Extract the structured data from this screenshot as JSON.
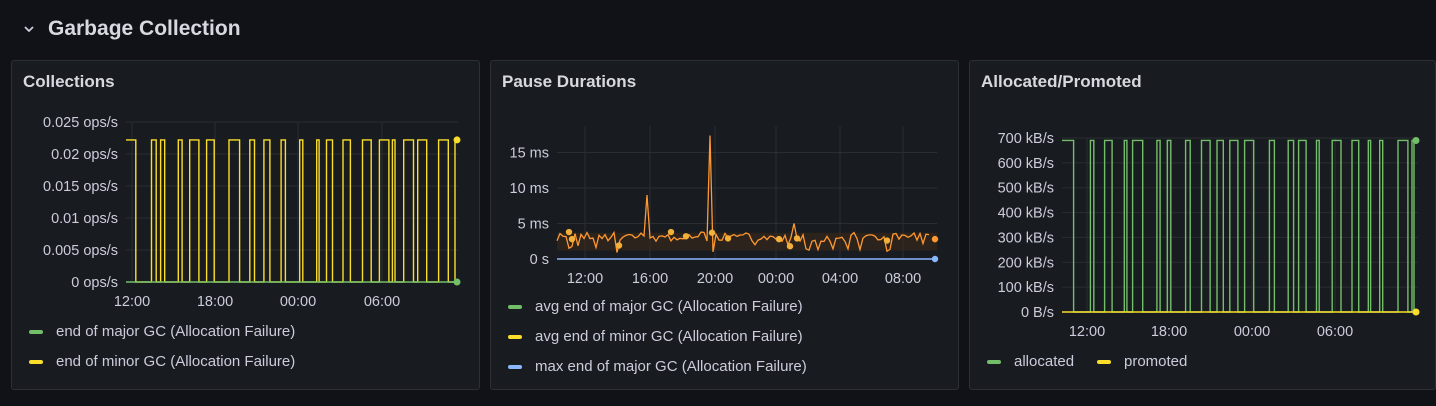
{
  "row": {
    "title": "Garbage Collection"
  },
  "colors": {
    "green": "#73bf69",
    "yellow": "#fade2a",
    "orange": "#ff9830",
    "blue": "#8ab8ff",
    "grid": "#2a2d33"
  },
  "panels": [
    {
      "title": "Collections",
      "legend": [
        "end of major GC (Allocation Failure)",
        "end of minor GC (Allocation Failure)"
      ],
      "chart_data": {
        "type": "line",
        "y_ticks": [
          "0.025 ops/s",
          "0.02 ops/s",
          "0.015 ops/s",
          "0.01 ops/s",
          "0.005 ops/s",
          "0 ops/s"
        ],
        "ylim": [
          0,
          0.025
        ],
        "x_ticks": [
          "12:00",
          "18:00",
          "00:00",
          "06:00"
        ],
        "series": [
          {
            "name": "end of major GC (Allocation Failure)",
            "color": "#73bf69",
            "values": [
              0,
              0
            ]
          },
          {
            "name": "end of minor GC (Allocation Failure)",
            "color": "#fade2a",
            "peak": 0.0222,
            "square_wave": true
          }
        ]
      }
    },
    {
      "title": "Pause Durations",
      "legend": [
        "avg end of major GC (Allocation Failure)",
        "avg end of minor GC (Allocation Failure)",
        "max end of major GC (Allocation Failure)"
      ],
      "chart_data": {
        "type": "line",
        "y_ticks": [
          "15 ms",
          "10 ms",
          "5 ms",
          "0 s"
        ],
        "ylim": [
          0,
          18
        ],
        "x_ticks": [
          "12:00",
          "16:00",
          "20:00",
          "00:00",
          "04:00",
          "08:00"
        ],
        "series": [
          {
            "name": "avg end of major GC (Allocation Failure)",
            "color": "#73bf69"
          },
          {
            "name": "avg end of minor GC (Allocation Failure)",
            "color": "#fade2a"
          },
          {
            "name": "max end of major GC (Allocation Failure)",
            "color": "#8ab8ff"
          }
        ],
        "spikes_ms": [
          9,
          17.4,
          5
        ]
      }
    },
    {
      "title": "Allocated/Promoted",
      "legend": [
        "allocated",
        "promoted"
      ],
      "chart_data": {
        "type": "line",
        "y_ticks": [
          "700 kB/s",
          "600 kB/s",
          "500 kB/s",
          "400 kB/s",
          "300 kB/s",
          "200 kB/s",
          "100 kB/s",
          "0 B/s"
        ],
        "ylim": [
          0,
          700
        ],
        "x_ticks": [
          "12:00",
          "18:00",
          "00:00",
          "06:00"
        ],
        "series": [
          {
            "name": "allocated",
            "color": "#73bf69",
            "peak": 690,
            "square_wave": true
          },
          {
            "name": "promoted",
            "color": "#fade2a",
            "values": [
              0,
              0
            ]
          }
        ]
      }
    }
  ]
}
